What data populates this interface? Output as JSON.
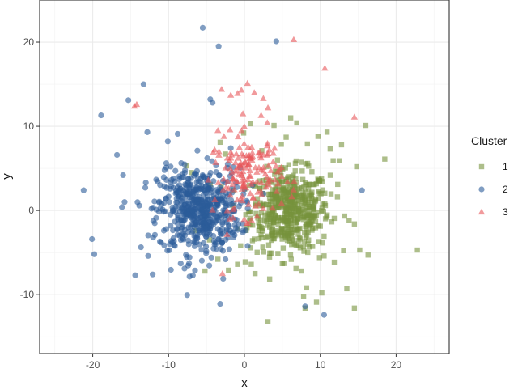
{
  "chart_data": {
    "type": "scatter",
    "xlabel": "x",
    "ylabel": "y",
    "xlim": [
      -27,
      27
    ],
    "ylim": [
      -17,
      25
    ],
    "x_ticks": [
      -20,
      -10,
      0,
      10,
      20
    ],
    "y_ticks": [
      -10,
      0,
      10,
      20
    ],
    "grid": true,
    "legend_title": "Cluster",
    "legend_position": "right",
    "series": [
      {
        "name": "1",
        "shape": "square",
        "color": "#77933c",
        "center": [
          6,
          0
        ],
        "spread": [
          2.6,
          2.4
        ],
        "count": 520,
        "outliers": [
          [
            22.8,
            -4.7
          ],
          [
            18.5,
            6.1
          ],
          [
            16,
            10.1
          ],
          [
            15.2,
            -4.7
          ],
          [
            16.3,
            -5.3
          ],
          [
            14.8,
            5.2
          ],
          [
            14.5,
            -1.6
          ],
          [
            13.8,
            -1.2
          ],
          [
            14.5,
            -11.6
          ],
          [
            13.5,
            -9.3
          ],
          [
            12.5,
            5.9
          ],
          [
            12.3,
            3.1
          ],
          [
            11.7,
            5.9
          ],
          [
            11.3,
            7.3
          ],
          [
            10.9,
            9.3
          ],
          [
            10.5,
            -5.4
          ],
          [
            10.2,
            -9.8
          ],
          [
            9.9,
            -5.6
          ],
          [
            9.5,
            -10.9
          ],
          [
            8.2,
            -9.2
          ],
          [
            8,
            -11.6
          ],
          [
            7.8,
            -10.2
          ],
          [
            7.5,
            -7.2
          ],
          [
            6.8,
            -6.9
          ],
          [
            3.1,
            -13.2
          ],
          [
            2.3,
            7.1
          ],
          [
            1.4,
            -7.5
          ],
          [
            0.9,
            -6.4
          ],
          [
            -0.9,
            -6.4
          ],
          [
            -2.1,
            -7.1
          ],
          [
            -3.5,
            -5.8
          ],
          [
            -4.6,
            -3.5
          ],
          [
            -5.2,
            -7.2
          ],
          [
            -7,
            4.5
          ],
          [
            -7.6,
            5.3
          ],
          [
            -3.2,
            8.1
          ],
          [
            -2.5,
            6.7
          ],
          [
            -0.1,
            9.2
          ],
          [
            0.8,
            10.3
          ],
          [
            3.9,
            10.1
          ],
          [
            6.9,
            10.4
          ],
          [
            9.7,
            8.8
          ],
          [
            8.3,
            7.9
          ],
          [
            5.5,
            8.7
          ],
          [
            -4.5,
            3.1
          ],
          [
            1.3,
            -3.4
          ],
          [
            -0.5,
            -4.2
          ],
          [
            12.8,
            7.8
          ],
          [
            6.1,
            11.0
          ],
          [
            -6.5,
            -2.4
          ]
        ]
      },
      {
        "name": "2",
        "shape": "circle",
        "color": "#2b5c99",
        "center": [
          -6,
          0
        ],
        "spread": [
          2.7,
          2.5
        ],
        "count": 560,
        "outliers": [
          [
            -21.2,
            2.4
          ],
          [
            -20.1,
            -3.4
          ],
          [
            -19.8,
            -5.2
          ],
          [
            -18.9,
            11.3
          ],
          [
            -16.8,
            6.6
          ],
          [
            -16,
            4.2
          ],
          [
            -15.8,
            1
          ],
          [
            -15.3,
            13.1
          ],
          [
            -14.4,
            -7.7
          ],
          [
            -13.3,
            15
          ],
          [
            -12.8,
            9.3
          ],
          [
            -12.1,
            -7.6
          ],
          [
            -11.8,
            -2.9
          ],
          [
            -11,
            -3.8
          ],
          [
            -10.6,
            0.9
          ],
          [
            -10.3,
            5.1
          ],
          [
            -9.5,
            -3.8
          ],
          [
            -9.1,
            4.7
          ],
          [
            -8.8,
            9.1
          ],
          [
            -8.4,
            -6.3
          ],
          [
            -7.9,
            -6.9
          ],
          [
            -7.3,
            -6.3
          ],
          [
            -6.8,
            -7.7
          ],
          [
            -6.2,
            7.1
          ],
          [
            -5.5,
            21.7
          ],
          [
            -4.9,
            6.2
          ],
          [
            -4.5,
            13.2
          ],
          [
            -4.2,
            12.8
          ],
          [
            -3.4,
            19.5
          ],
          [
            -3.2,
            -11.1
          ],
          [
            -2.8,
            -8.1
          ],
          [
            -2.5,
            -5.8
          ],
          [
            -2.2,
            5.5
          ],
          [
            -1.6,
            -2.6
          ],
          [
            -1.1,
            3.3
          ],
          [
            -0.7,
            0.5
          ],
          [
            4.2,
            20.1
          ],
          [
            8,
            -11.4
          ],
          [
            10.5,
            -12.4
          ],
          [
            15.5,
            2.4
          ],
          [
            -13,
            3.3
          ],
          [
            -12.7,
            -5.4
          ],
          [
            -10.1,
            8.2
          ],
          [
            -1.8,
            7.4
          ],
          [
            -8.7,
            1.7
          ]
        ]
      },
      {
        "name": "3",
        "shape": "triangle",
        "color": "#e8575a",
        "center": [
          0.5,
          4.2
        ],
        "spread": [
          2.2,
          2.4
        ],
        "count": 150,
        "outliers": [
          [
            -14.5,
            12.4
          ],
          [
            -14.2,
            12.6
          ],
          [
            -3,
            14.4
          ],
          [
            -1.8,
            13.7
          ],
          [
            -0.9,
            13.9
          ],
          [
            -0.4,
            14.3
          ],
          [
            0.4,
            15.1
          ],
          [
            1.3,
            14
          ],
          [
            2.5,
            13.3
          ],
          [
            3.1,
            12.2
          ],
          [
            2.2,
            11.3
          ],
          [
            6.5,
            20.3
          ],
          [
            10.6,
            16.9
          ],
          [
            14.5,
            11.1
          ],
          [
            -2.9,
            -7.5
          ],
          [
            -3.8,
            5.7
          ],
          [
            -2.1,
            2.6
          ],
          [
            -1.5,
            0.1
          ],
          [
            -4.1,
            6.9
          ],
          [
            -0.2,
            11.5
          ],
          [
            -3.5,
            9.5
          ],
          [
            -2.7,
            8.8
          ]
        ]
      }
    ]
  }
}
